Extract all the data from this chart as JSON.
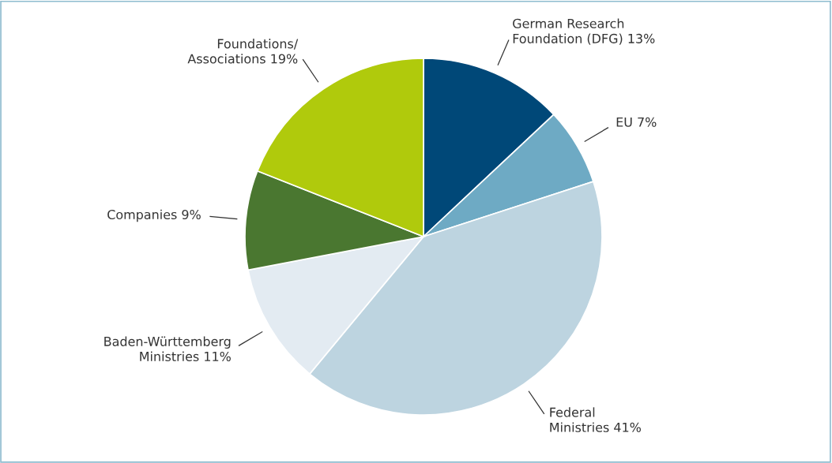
{
  "chart_data": {
    "type": "pie",
    "categories": [
      "German Research\nFoundation (DFG)",
      "EU",
      "Federal\nMinistries",
      "Baden-Württemberg\nMinistries",
      "Companies",
      "Foundations/\nAssociations"
    ],
    "values": [
      13,
      7,
      41,
      11,
      9,
      19
    ],
    "value_labels": [
      "13%",
      "7%",
      "41%",
      "11%",
      "9%",
      "19%"
    ],
    "colors": [
      "#004878",
      "#6eaac4",
      "#bdd4e0",
      "#e3ebf2",
      "#4a7730",
      "#b0ca0c"
    ],
    "legend": false
  }
}
